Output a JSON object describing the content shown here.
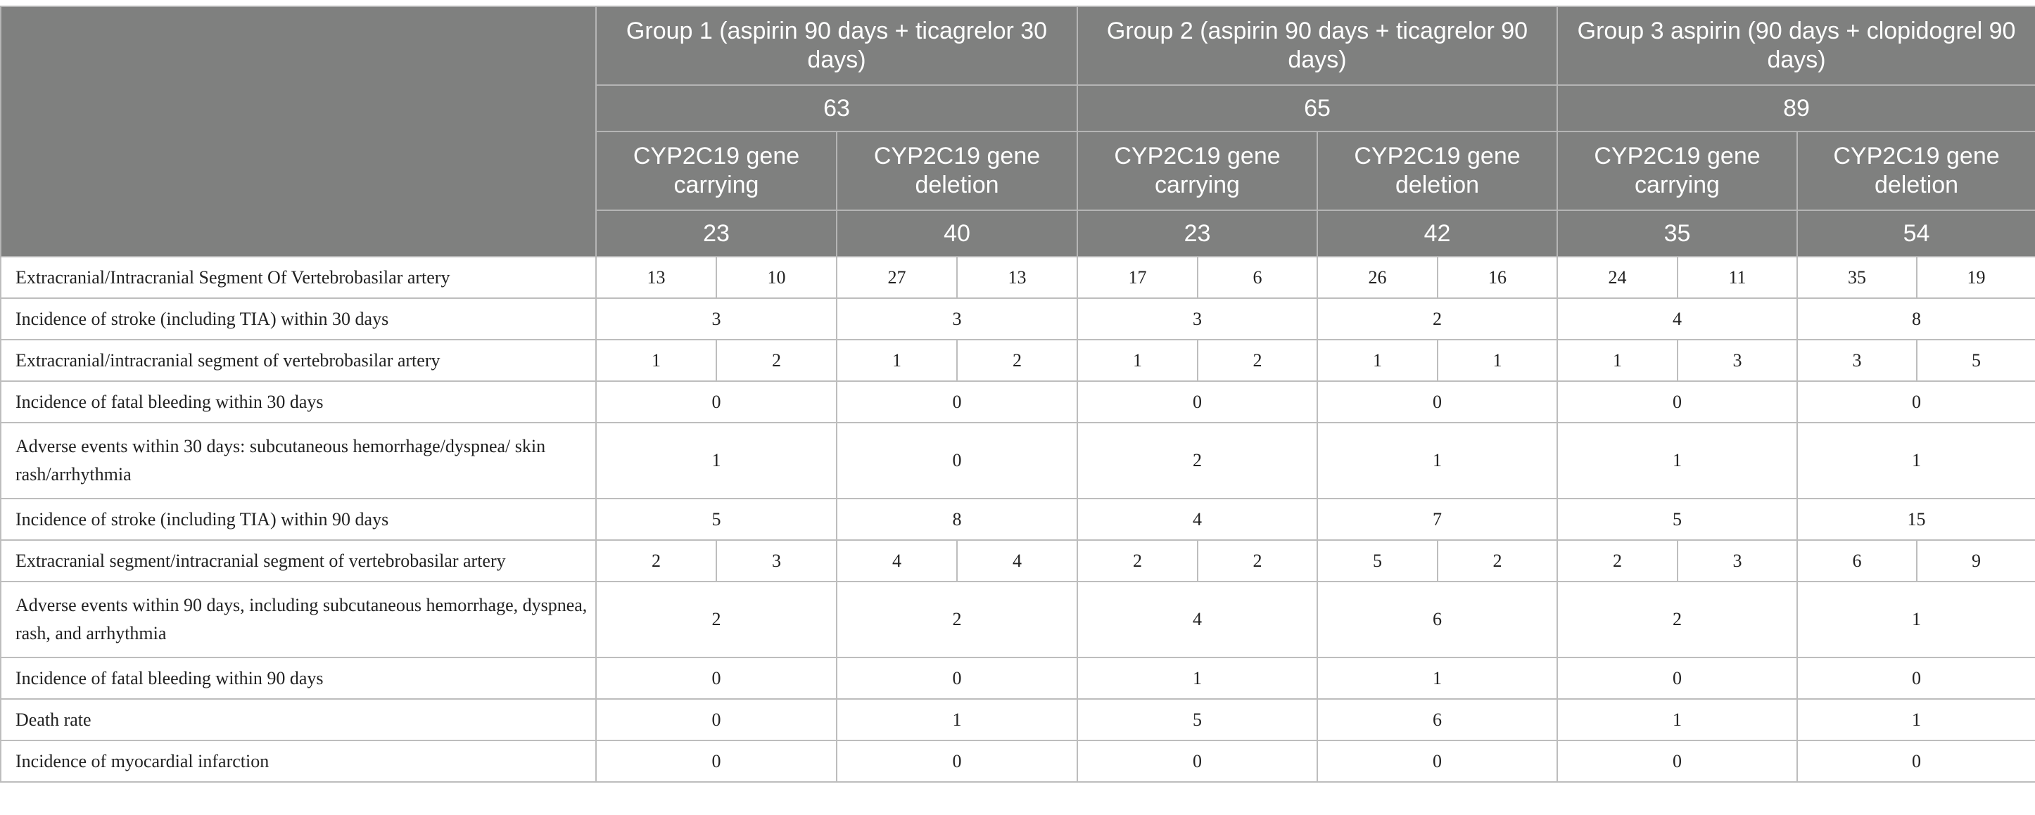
{
  "groups": [
    {
      "label": "Group 1 (aspirin 90 days + ticagrelor 30 days)",
      "n": "63",
      "carrying": {
        "label": "CYP2C19 gene carrying",
        "n": "23"
      },
      "deletion": {
        "label": "CYP2C19 gene deletion",
        "n": "40"
      }
    },
    {
      "label": "Group 2 (aspirin 90 days + ticagrelor 90 days)",
      "n": "65",
      "carrying": {
        "label": "CYP2C19 gene carrying",
        "n": "23"
      },
      "deletion": {
        "label": "CYP2C19 gene deletion",
        "n": "42"
      }
    },
    {
      "label": "Group 3 aspirin (90 days + clopidogrel 90 days)",
      "n": "89",
      "carrying": {
        "label": "CYP2C19 gene carrying",
        "n": "35"
      },
      "deletion": {
        "label": "CYP2C19 gene deletion",
        "n": "54"
      }
    }
  ],
  "rows": [
    {
      "label": "Extracranial/Intracranial Segment Of Vertebrobasilar artery",
      "split": true,
      "values": [
        "13",
        "10",
        "27",
        "13",
        "17",
        "6",
        "26",
        "16",
        "24",
        "11",
        "35",
        "19"
      ]
    },
    {
      "label": "Incidence of stroke (including TIA) within 30 days",
      "split": false,
      "values": [
        "3",
        "3",
        "3",
        "2",
        "4",
        "8"
      ]
    },
    {
      "label": "Extracranial/intracranial segment of vertebrobasilar artery",
      "split": true,
      "values": [
        "1",
        "2",
        "1",
        "2",
        "1",
        "2",
        "1",
        "1",
        "1",
        "3",
        "3",
        "5"
      ]
    },
    {
      "label": "Incidence of fatal bleeding within 30 days",
      "split": false,
      "values": [
        "0",
        "0",
        "0",
        "0",
        "0",
        "0"
      ]
    },
    {
      "label": "Adverse events within 30 days: subcutaneous hemorrhage/dyspnea/ skin rash/arrhythmia",
      "split": false,
      "tall": true,
      "values": [
        "1",
        "0",
        "2",
        "1",
        "1",
        "1"
      ]
    },
    {
      "label": "Incidence of stroke (including TIA) within 90 days",
      "split": false,
      "values": [
        "5",
        "8",
        "4",
        "7",
        "5",
        "15"
      ]
    },
    {
      "label": "Extracranial segment/intracranial segment of vertebrobasilar artery",
      "split": true,
      "values": [
        "2",
        "3",
        "4",
        "4",
        "2",
        "2",
        "5",
        "2",
        "2",
        "3",
        "6",
        "9"
      ]
    },
    {
      "label": "Adverse events within 90 days, including subcutaneous hemorrhage, dyspnea, rash, and arrhythmia",
      "split": false,
      "tall": true,
      "values": [
        "2",
        "2",
        "4",
        "6",
        "2",
        "1"
      ]
    },
    {
      "label": "Incidence of fatal bleeding within 90 days",
      "split": false,
      "values": [
        "0",
        "0",
        "1",
        "1",
        "0",
        "0"
      ]
    },
    {
      "label": "Death rate",
      "split": false,
      "values": [
        "0",
        "1",
        "5",
        "6",
        "1",
        "1"
      ]
    },
    {
      "label": "Incidence of myocardial infarction",
      "split": false,
      "values": [
        "0",
        "0",
        "0",
        "0",
        "0",
        "0"
      ]
    }
  ]
}
